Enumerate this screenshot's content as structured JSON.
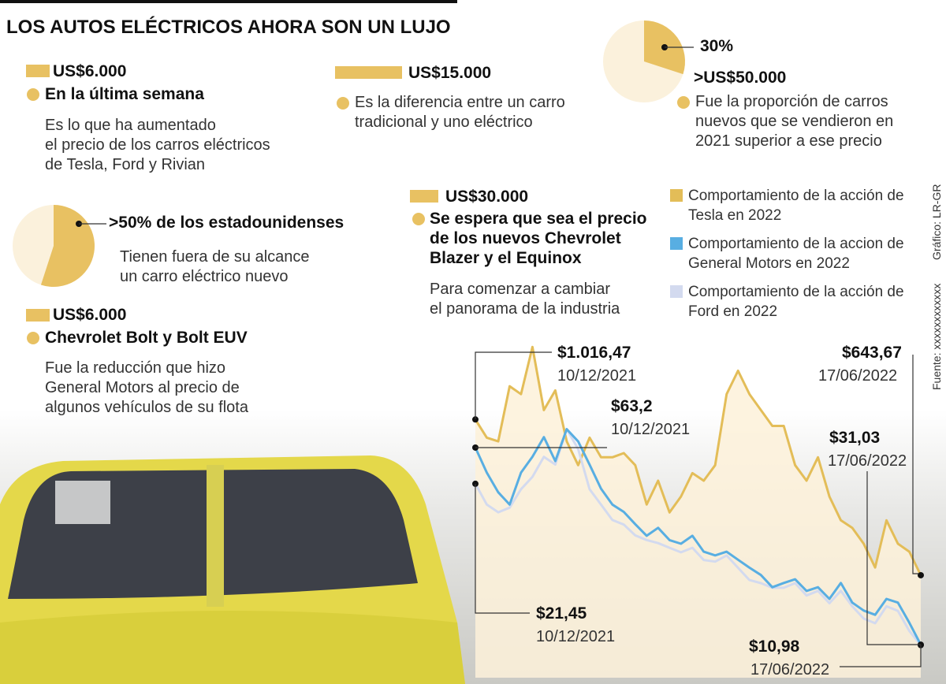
{
  "header": {
    "title": "LOS AUTOS ELÉCTRICOS AHORA SON UN LUJO"
  },
  "blocks": [
    {
      "amount": "US$6.000",
      "subtitle": "En la última semana",
      "lines": [
        "Es lo que ha aumentado",
        "el precio de los carros eléctricos",
        "de Tesla, Ford y Rivian"
      ]
    },
    {
      "amount": "US$15.000",
      "lines": [
        "Es la diferencia entre un carro",
        "tradicional y uno eléctrico"
      ]
    },
    {
      "label": "30%",
      "amount": ">US$50.000",
      "lines": [
        "Fue la proporción de carros",
        "nuevos que se vendieron en",
        "2021 superior a ese precio"
      ]
    },
    {
      "label": ">50% de los estadounidenses",
      "lines": [
        "Tienen fuera de su alcance",
        "un carro eléctrico nuevo"
      ]
    },
    {
      "amount": "US$30.000",
      "subtitle": [
        "Se espera que sea el precio",
        "de los nuevos Chevrolet",
        "Blazer y el Equinox"
      ],
      "lines": [
        "Para comenzar a cambiar",
        "el panorama de la industria"
      ]
    },
    {
      "amount": "US$6.000",
      "subtitle": "Chevrolet Bolt y Bolt EUV",
      "lines": [
        "Fue la reducción que hizo",
        "General Motors al precio de",
        "algunos vehículos de su flota"
      ]
    }
  ],
  "credits": {
    "graphic": "Gráfico: LR-GR",
    "source": "Fuente: xxxxxxxxxxxx"
  },
  "chart_data": [
    {
      "type": "pie",
      "values": [
        30
      ],
      "value_labels": [
        "30%"
      ],
      "color": "#e8c162"
    },
    {
      "type": "pie",
      "values": [
        55
      ],
      "color": "#e8c162"
    },
    {
      "type": "line",
      "x": [
        "10/12/2021",
        null,
        null,
        null,
        null,
        null,
        null,
        null,
        null,
        null,
        null,
        null,
        null,
        null,
        null,
        null,
        null,
        null,
        null,
        null,
        null,
        null,
        null,
        null,
        null,
        null,
        null,
        null,
        null,
        null,
        null,
        null,
        null,
        null,
        null,
        null,
        null,
        null,
        null,
        "17/06/2022"
      ],
      "series": [
        {
          "name": "Comportamiento de la acción de Tesla en 2022",
          "color": "#e3bd58",
          "area": true,
          "ylim": [
            455,
            1200
          ],
          "values": [
            1016.47,
            973,
            964,
            1096,
            1077,
            1190,
            1039,
            1086,
            964,
            907,
            973,
            926,
            926,
            936,
            907,
            813,
            870,
            794,
            832,
            888,
            870,
            907,
            1077,
            1133,
            1077,
            1039,
            1001,
            1001,
            907,
            870,
            926,
            832,
            775,
            757,
            719,
            662,
            775,
            719,
            700,
            643.67
          ],
          "value_labels": [
            "$1.016,47",
            null,
            null,
            null,
            null,
            null,
            null,
            null,
            null,
            null,
            null,
            null,
            null,
            null,
            null,
            null,
            null,
            null,
            null,
            null,
            null,
            null,
            null,
            null,
            null,
            null,
            null,
            null,
            null,
            null,
            null,
            null,
            null,
            null,
            null,
            null,
            null,
            null,
            null,
            "$643,67"
          ]
        },
        {
          "name": "Comportamiento de la accion de General Motors en 2022",
          "color": "#58aee2",
          "ylim": [
            29.5,
            80.3
          ],
          "values": [
            63.2,
            59.1,
            55.9,
            53.9,
            59.1,
            61.7,
            64.9,
            61.0,
            66.2,
            64.2,
            60.4,
            56.5,
            53.9,
            52.7,
            50.7,
            48.8,
            50.1,
            48.1,
            47.5,
            48.8,
            46.2,
            45.6,
            46.2,
            44.9,
            43.6,
            42.4,
            40.4,
            41.1,
            41.7,
            39.8,
            40.4,
            38.5,
            41.1,
            37.9,
            36.6,
            35.9,
            38.5,
            37.9,
            34.6,
            31.03
          ],
          "value_labels": [
            "$63,2",
            null,
            null,
            null,
            null,
            null,
            null,
            null,
            null,
            null,
            null,
            null,
            null,
            null,
            null,
            null,
            null,
            null,
            null,
            null,
            null,
            null,
            null,
            null,
            null,
            null,
            null,
            null,
            null,
            null,
            null,
            null,
            null,
            null,
            null,
            null,
            null,
            null,
            null,
            "$31,03"
          ]
        },
        {
          "name": "Comportamiento de la acción de Ford en 2022",
          "color": "#d3daef",
          "ylim": [
            10.4,
            30.6
          ],
          "values": [
            21.45,
            20.1,
            19.6,
            19.9,
            21.1,
            21.9,
            23.2,
            22.7,
            25.0,
            23.7,
            21.1,
            20.1,
            19.1,
            18.8,
            18.1,
            17.8,
            17.6,
            17.3,
            17.0,
            17.3,
            16.5,
            16.4,
            16.8,
            16.0,
            15.2,
            15.0,
            14.7,
            14.7,
            15.0,
            14.2,
            14.5,
            13.7,
            14.5,
            13.5,
            12.7,
            12.4,
            13.5,
            13.2,
            11.9,
            10.98
          ],
          "value_labels": [
            "$21,45",
            null,
            null,
            null,
            null,
            null,
            null,
            null,
            null,
            null,
            null,
            null,
            null,
            null,
            null,
            null,
            null,
            null,
            null,
            null,
            null,
            null,
            null,
            null,
            null,
            null,
            null,
            null,
            null,
            null,
            null,
            null,
            null,
            null,
            null,
            null,
            null,
            null,
            null,
            "$10,98"
          ]
        }
      ]
    }
  ]
}
